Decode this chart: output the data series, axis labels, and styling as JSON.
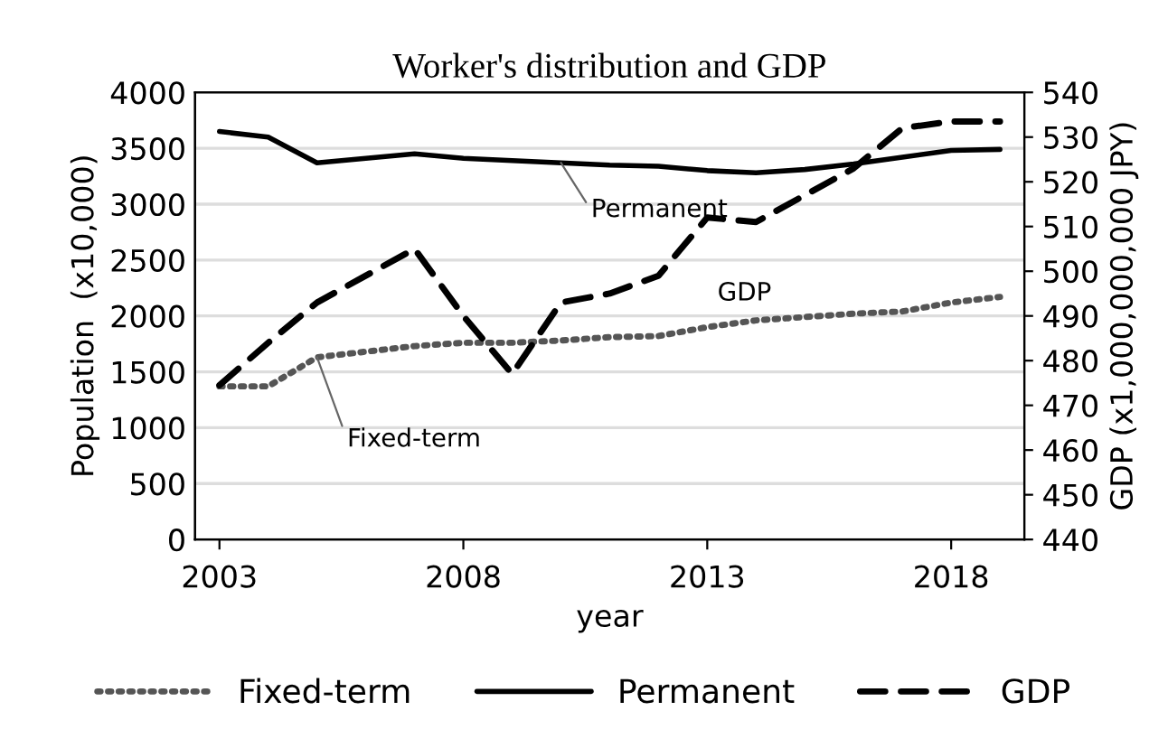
{
  "chart_data": {
    "type": "line",
    "title": "Worker's distribution and GDP",
    "xlabel": "year",
    "ylabel": "Population  (x10,000)",
    "y2label": "GDP (x1,000,000,000 JPY)",
    "x": [
      2003,
      2004,
      2005,
      2006,
      2007,
      2008,
      2009,
      2010,
      2011,
      2012,
      2013,
      2014,
      2015,
      2016,
      2017,
      2018,
      2019
    ],
    "series": [
      {
        "name": "Fixed-term",
        "color": "#555555",
        "line_style": "dotted",
        "values": [
          1370,
          1370,
          1630,
          1680,
          1730,
          1760,
          1760,
          1780,
          1810,
          1820,
          1900,
          1960,
          1990,
          2020,
          2040,
          2120,
          2170
        ]
      },
      {
        "name": "Permanent",
        "color": "#000000",
        "line_style": "solid",
        "values": [
          3650,
          3600,
          3370,
          3410,
          3450,
          3410,
          3390,
          3370,
          3350,
          3340,
          3300,
          3280,
          3310,
          3360,
          3420,
          3480,
          3490
        ]
      },
      {
        "name": "GDP",
        "color": "#000000",
        "line_style": "dashed",
        "axis": "y2",
        "values": [
          474.5,
          484,
          493,
          499,
          505,
          490,
          477,
          493,
          495,
          499,
          512,
          511,
          517,
          523,
          532,
          533.5,
          533.5
        ]
      }
    ],
    "annotations": [
      {
        "text": "Permanent",
        "x": 2010,
        "y": 3370
      },
      "GDP",
      {
        "text": "Fixed-term",
        "x": 2005,
        "y": 1630
      }
    ],
    "xlim": [
      2002.5,
      2019.5
    ],
    "xticks": [
      2003,
      2008,
      2013,
      2018
    ],
    "ylim": [
      0,
      4000
    ],
    "yticks": [
      0,
      500,
      1000,
      1500,
      2000,
      2500,
      3000,
      3500,
      4000
    ],
    "y2lim": [
      440,
      540
    ],
    "y2ticks": [
      440,
      450,
      460,
      470,
      480,
      490,
      500,
      510,
      520,
      530,
      540
    ],
    "grid": "y",
    "legend": "bottom",
    "marker": "none"
  }
}
